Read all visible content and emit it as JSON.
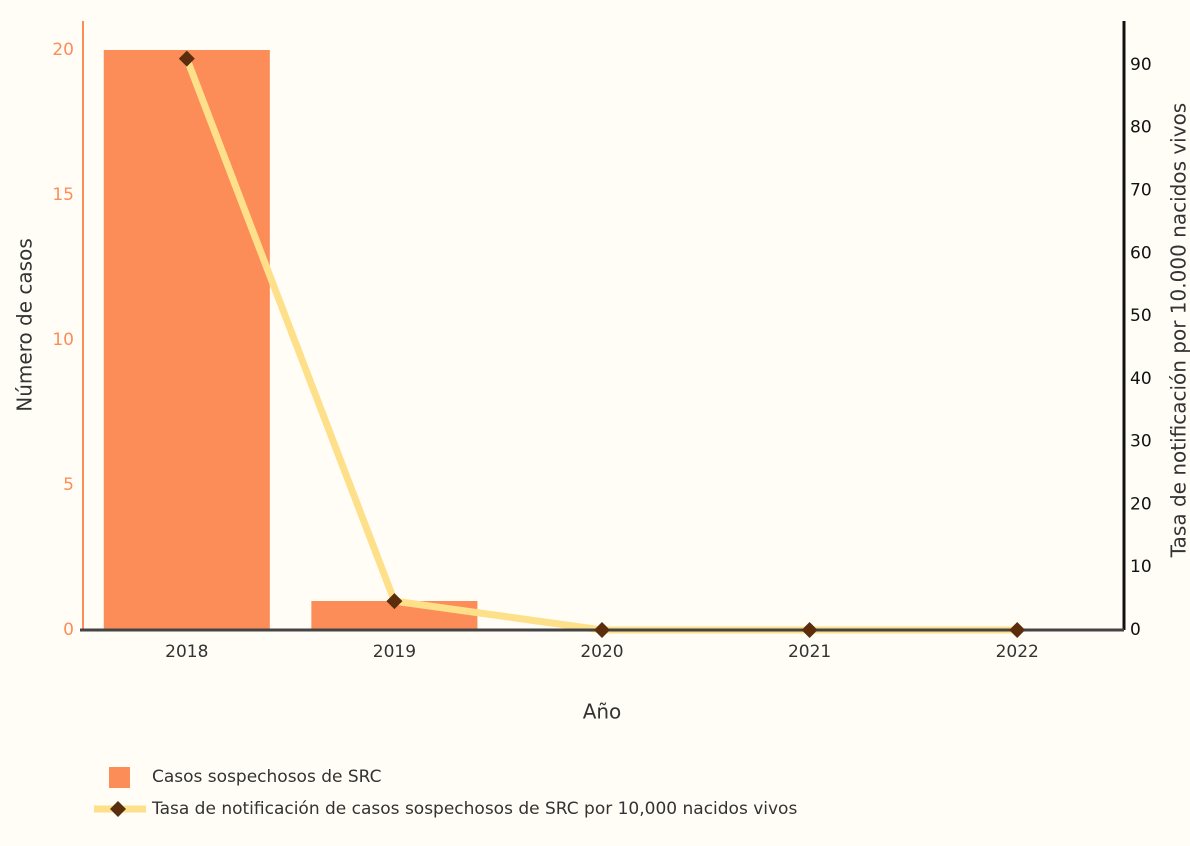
{
  "chart_data": {
    "type": "bar",
    "x_label": "Año",
    "y_label": "Número de casos",
    "y2_label": "Tasa de notificación por 10.000 nacidos vivos",
    "categories": [
      "2018",
      "2019",
      "2020",
      "2021",
      "2022"
    ],
    "series": [
      {
        "name": "Casos sospechosos de SRC",
        "type": "bar",
        "color": "#fc8d59",
        "values": [
          20,
          1,
          0,
          0,
          0
        ]
      },
      {
        "name": "Tasa de notificación de casos sospechosos de SRC por 10,000 nacidos vivos",
        "type": "line",
        "axis": "y2",
        "color": "#fee08b",
        "marker_color": "#5a2d0c",
        "values": [
          91,
          4.6,
          0,
          0,
          0
        ]
      }
    ],
    "ylim": [
      0,
      21
    ],
    "yticks": [
      0,
      5,
      10,
      15,
      20
    ],
    "y2lim": [
      0,
      97
    ],
    "y2ticks": [
      0,
      10,
      20,
      30,
      40,
      50,
      60,
      70,
      80,
      90
    ],
    "ytick_color": "#fc8d59",
    "legend": "bottom"
  }
}
